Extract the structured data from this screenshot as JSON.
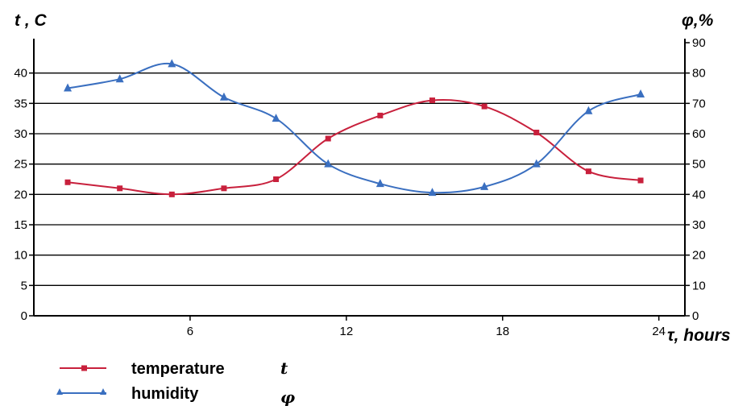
{
  "chart_data": {
    "type": "line",
    "x_axis": {
      "label": "τ, hours",
      "range": [
        0,
        25
      ],
      "ticks": [
        6,
        12,
        18,
        24
      ]
    },
    "y_axis_left": {
      "label": "t , C",
      "range": [
        0,
        45
      ],
      "ticks": [
        0,
        5,
        10,
        15,
        20,
        25,
        30,
        35,
        40
      ]
    },
    "y_axis_right": {
      "label": "φ,%",
      "range": [
        0,
        90
      ],
      "ticks": [
        0,
        10,
        20,
        30,
        40,
        50,
        60,
        70,
        80,
        90
      ]
    },
    "grid": true,
    "legend_placement": "bottom-left",
    "series": [
      {
        "name": "temperature",
        "symbol": "t",
        "axis": "left",
        "color": "#c8203c",
        "marker": "square",
        "x": [
          1.3,
          3.3,
          5.3,
          7.3,
          9.3,
          11.3,
          13.3,
          15.3,
          17.3,
          19.3,
          21.3,
          23.3
        ],
        "y": [
          22,
          21,
          20,
          21,
          22.5,
          29.2,
          33,
          35.5,
          34.5,
          30.2,
          23.8,
          22.3
        ]
      },
      {
        "name": "humidity",
        "symbol": "φ",
        "axis": "right",
        "color": "#3a6fc0",
        "marker": "triangle",
        "x": [
          1.3,
          3.3,
          5.3,
          7.3,
          9.3,
          11.3,
          13.3,
          15.3,
          17.3,
          19.3,
          21.3,
          23.3
        ],
        "y": [
          75,
          78,
          83,
          72,
          65,
          50,
          43.5,
          40.6,
          42.5,
          50,
          67.5,
          73
        ]
      }
    ]
  }
}
